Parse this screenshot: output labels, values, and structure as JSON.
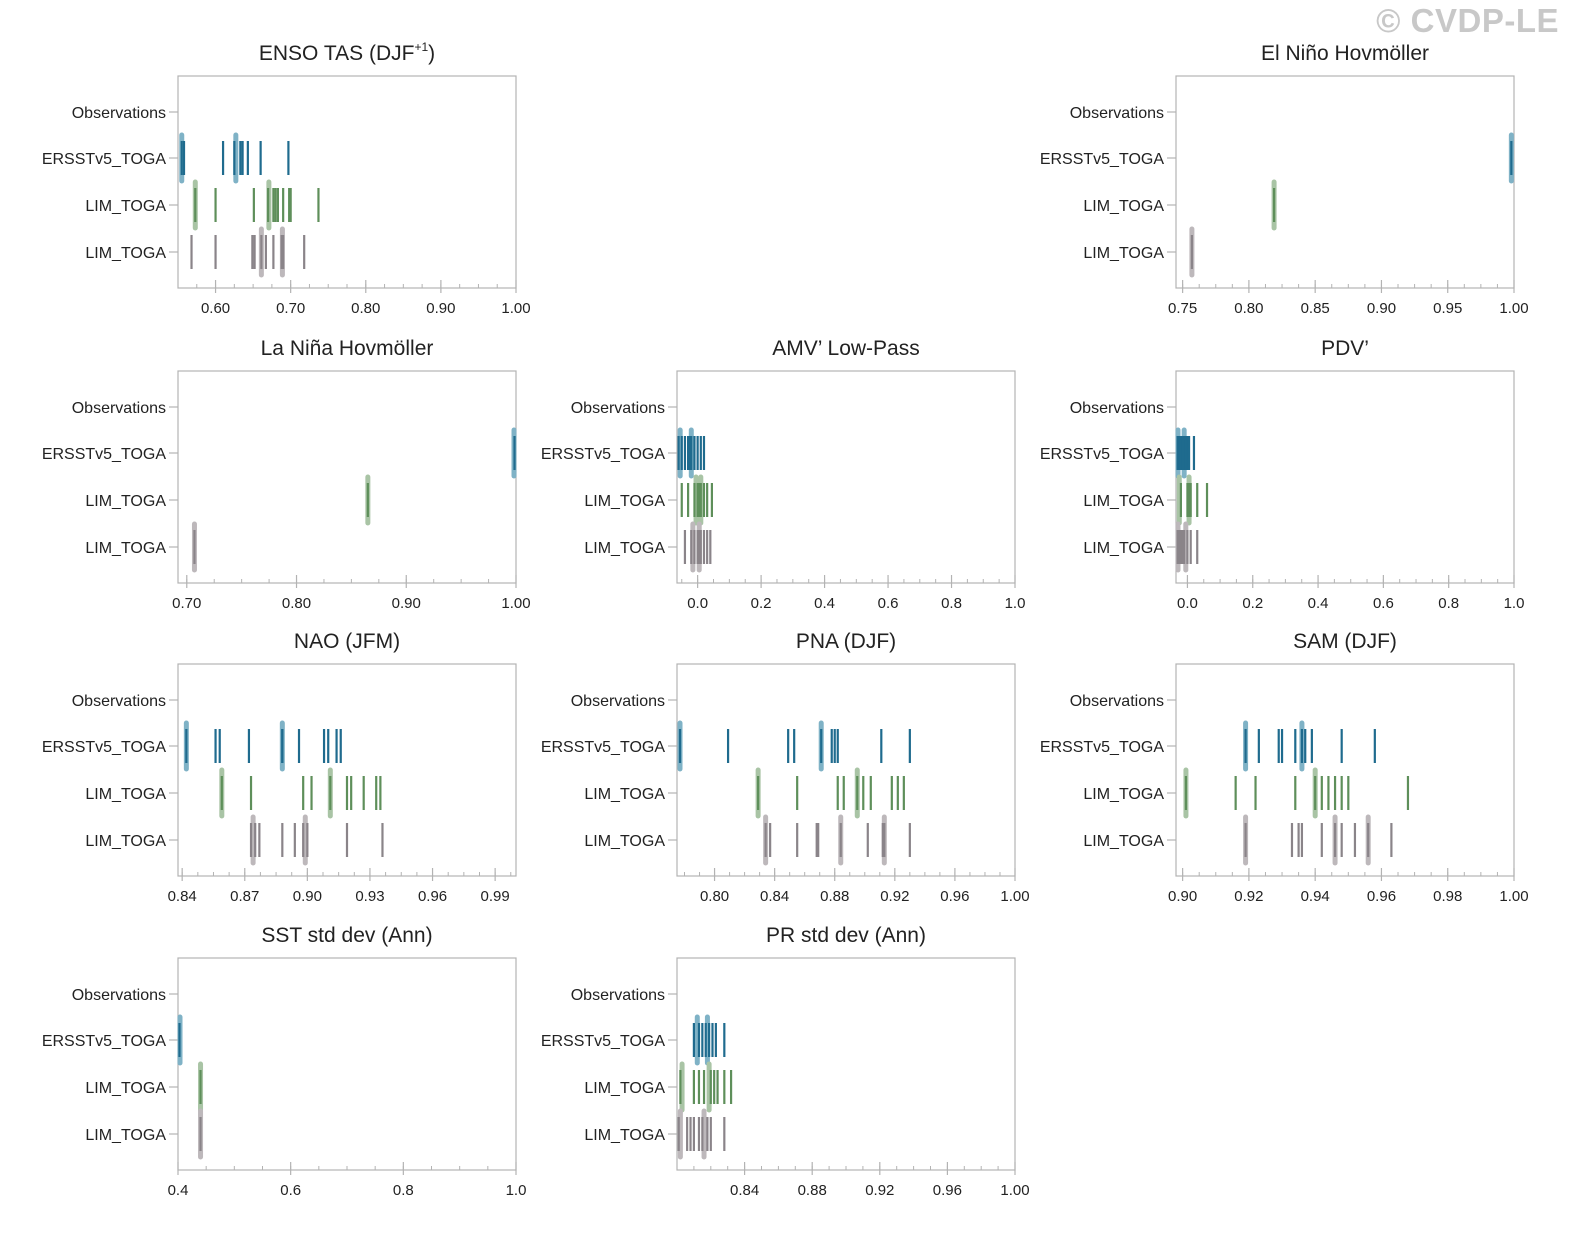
{
  "watermark": "© CVDP-LE",
  "row_labels": [
    "Observations",
    "ERSSTv5_TOGA",
    "LIM_TOGA",
    "LIM_TOGA"
  ],
  "colors": {
    "ersst": "#1f6b8e",
    "lim1": "#5e8f5a",
    "lim2": "#8a8489",
    "ersst_light": "#7fb2c6",
    "lim1_light": "#a9c4a5",
    "lim2_light": "#bdb8bb",
    "axis": "#b3b3b3"
  },
  "chart_data": [
    {
      "type": "scatter",
      "panel": "enso",
      "title": "ENSO TAS (DJF",
      "title_sup": "+1",
      "title_suffix": ")",
      "xlim": [
        0.55,
        1.0
      ],
      "xticks": [
        0.6,
        0.7,
        0.8,
        0.9,
        1.0
      ],
      "xtick_labels": [
        "0.60",
        "0.70",
        "0.80",
        "0.90",
        "1.00"
      ],
      "series": [
        {
          "values": [
            0.555,
            0.558,
            0.61,
            0.625,
            0.633,
            0.636,
            0.643,
            0.66,
            0.697
          ],
          "highlight": [
            0.555,
            0.627
          ]
        },
        {
          "values": [
            0.573,
            0.6,
            0.651,
            0.67,
            0.677,
            0.68,
            0.683,
            0.69,
            0.698,
            0.7,
            0.737
          ],
          "highlight": [
            0.573,
            0.671
          ]
        },
        {
          "values": [
            0.568,
            0.6,
            0.649,
            0.652,
            0.661,
            0.667,
            0.677,
            0.688,
            0.69,
            0.718
          ],
          "highlight": [
            0.661,
            0.689
          ]
        }
      ]
    },
    {
      "type": "scatter",
      "panel": "elnino",
      "title": "El Niño Hovmöller",
      "xlim": [
        0.745,
        1.0
      ],
      "xticks": [
        0.75,
        0.8,
        0.85,
        0.9,
        0.95,
        1.0
      ],
      "xtick_labels": [
        "0.75",
        "0.80",
        "0.85",
        "0.90",
        "0.95",
        "1.00"
      ],
      "series": [
        {
          "values": [
            0.998
          ],
          "highlight": [
            0.998
          ]
        },
        {
          "values": [
            0.819
          ],
          "highlight": [
            0.819
          ]
        },
        {
          "values": [
            0.757
          ],
          "highlight": [
            0.757
          ]
        }
      ]
    },
    {
      "type": "scatter",
      "panel": "lanina",
      "title": "La Niña Hovmöller",
      "xlim": [
        0.692,
        1.0
      ],
      "xticks": [
        0.7,
        0.8,
        0.9,
        1.0
      ],
      "xtick_labels": [
        "0.70",
        "0.80",
        "0.90",
        "1.00"
      ],
      "series": [
        {
          "values": [
            0.999
          ],
          "highlight": [
            0.999
          ]
        },
        {
          "values": [
            0.865
          ],
          "highlight": [
            0.865
          ]
        },
        {
          "values": [
            0.707
          ],
          "highlight": [
            0.707
          ]
        }
      ]
    },
    {
      "type": "scatter",
      "panel": "amv",
      "title": "AMV’ Low-Pass",
      "xlim": [
        -0.065,
        1.0
      ],
      "xticks": [
        0.0,
        0.2,
        0.4,
        0.6,
        0.8,
        1.0
      ],
      "xtick_labels": [
        "0.0",
        "0.2",
        "0.4",
        "0.6",
        "0.8",
        "1.0"
      ],
      "series": [
        {
          "values": [
            -0.06,
            -0.05,
            -0.04,
            -0.03,
            -0.025,
            -0.02,
            -0.01,
            0.0,
            0.01,
            0.02
          ],
          "highlight": [
            -0.055,
            -0.02
          ]
        },
        {
          "values": [
            -0.05,
            -0.03,
            -0.01,
            0.0,
            0.005,
            0.01,
            0.02,
            0.03,
            0.045
          ],
          "highlight": [
            -0.005,
            0.01
          ]
        },
        {
          "values": [
            -0.04,
            -0.02,
            -0.01,
            0.0,
            0.005,
            0.01,
            0.02,
            0.03,
            0.04
          ],
          "highlight": [
            -0.015,
            0.005
          ]
        }
      ]
    },
    {
      "type": "scatter",
      "panel": "pdv",
      "title": "PDV’",
      "xlim": [
        -0.035,
        1.0
      ],
      "xticks": [
        0.0,
        0.2,
        0.4,
        0.6,
        0.8,
        1.0
      ],
      "xtick_labels": [
        "0.0",
        "0.2",
        "0.4",
        "0.6",
        "0.8",
        "1.0"
      ],
      "series": [
        {
          "values": [
            -0.03,
            -0.025,
            -0.02,
            -0.015,
            -0.01,
            -0.005,
            0.0,
            0.005,
            0.02
          ],
          "highlight": [
            -0.03,
            -0.01
          ]
        },
        {
          "values": [
            -0.02,
            0.0,
            0.005,
            0.01,
            0.03,
            0.06
          ],
          "highlight": [
            -0.025,
            0.005
          ]
        },
        {
          "values": [
            -0.03,
            -0.025,
            -0.02,
            -0.015,
            -0.01,
            0.0,
            0.01,
            0.03
          ],
          "highlight": [
            -0.03,
            -0.005
          ]
        }
      ]
    },
    {
      "type": "scatter",
      "panel": "nao",
      "title": "NAO (JFM)",
      "xlim": [
        0.838,
        1.0
      ],
      "xticks": [
        0.84,
        0.87,
        0.9,
        0.93,
        0.96,
        0.99
      ],
      "xtick_labels": [
        "0.84",
        "0.87",
        "0.90",
        "0.93",
        "0.96",
        "0.99"
      ],
      "series": [
        {
          "values": [
            0.842,
            0.856,
            0.858,
            0.872,
            0.888,
            0.888,
            0.896,
            0.908,
            0.91,
            0.914,
            0.916
          ],
          "highlight": [
            0.842,
            0.888
          ]
        },
        {
          "values": [
            0.859,
            0.873,
            0.898,
            0.902,
            0.911,
            0.919,
            0.921,
            0.927,
            0.933,
            0.935
          ],
          "highlight": [
            0.859,
            0.911
          ]
        },
        {
          "values": [
            0.873,
            0.875,
            0.877,
            0.888,
            0.894,
            0.898,
            0.9,
            0.919,
            0.936
          ],
          "highlight": [
            0.874,
            0.899
          ]
        }
      ]
    },
    {
      "type": "scatter",
      "panel": "pna",
      "title": "PNA (DJF)",
      "xlim": [
        0.775,
        1.0
      ],
      "xticks": [
        0.8,
        0.84,
        0.88,
        0.92,
        0.96,
        1.0
      ],
      "xtick_labels": [
        "0.80",
        "0.84",
        "0.88",
        "0.92",
        "0.96",
        "1.00"
      ],
      "series": [
        {
          "values": [
            0.777,
            0.809,
            0.849,
            0.853,
            0.871,
            0.878,
            0.88,
            0.882,
            0.911,
            0.93
          ],
          "highlight": [
            0.777,
            0.871
          ]
        },
        {
          "values": [
            0.829,
            0.855,
            0.882,
            0.886,
            0.895,
            0.899,
            0.904,
            0.918,
            0.922,
            0.926
          ],
          "highlight": [
            0.829,
            0.895
          ]
        },
        {
          "values": [
            0.834,
            0.837,
            0.855,
            0.868,
            0.869,
            0.884,
            0.902,
            0.912,
            0.913,
            0.93
          ],
          "highlight": [
            0.834,
            0.884,
            0.913
          ]
        }
      ]
    },
    {
      "type": "scatter",
      "panel": "sam",
      "title": "SAM (DJF)",
      "xlim": [
        0.898,
        1.0
      ],
      "xticks": [
        0.9,
        0.92,
        0.94,
        0.96,
        0.98,
        1.0
      ],
      "xtick_labels": [
        "0.90",
        "0.92",
        "0.94",
        "0.96",
        "0.98",
        "1.00"
      ],
      "series": [
        {
          "values": [
            0.919,
            0.923,
            0.929,
            0.93,
            0.934,
            0.936,
            0.937,
            0.939,
            0.948,
            0.958
          ],
          "highlight": [
            0.919,
            0.936
          ]
        },
        {
          "values": [
            0.901,
            0.916,
            0.922,
            0.934,
            0.94,
            0.942,
            0.944,
            0.946,
            0.948,
            0.95,
            0.968
          ],
          "highlight": [
            0.901,
            0.94
          ]
        },
        {
          "values": [
            0.919,
            0.933,
            0.935,
            0.936,
            0.942,
            0.946,
            0.948,
            0.952,
            0.956,
            0.963
          ],
          "highlight": [
            0.919,
            0.946,
            0.956
          ]
        }
      ]
    },
    {
      "type": "scatter",
      "panel": "sst",
      "title": "SST std dev (Ann)",
      "xlim": [
        0.4,
        1.0
      ],
      "xticks": [
        0.4,
        0.6,
        0.8,
        1.0
      ],
      "xtick_labels": [
        "0.4",
        "0.6",
        "0.8",
        "1.0"
      ],
      "series": [
        {
          "values": [
            0.402
          ],
          "highlight": [
            0.402
          ]
        },
        {
          "values": [
            0.44
          ],
          "highlight": [
            0.44
          ]
        },
        {
          "values": [
            0.44
          ],
          "highlight": [
            0.44
          ]
        }
      ]
    },
    {
      "type": "scatter",
      "panel": "pr",
      "title": "PR std dev (Ann)",
      "xlim": [
        0.8,
        1.0
      ],
      "xticks": [
        0.84,
        0.88,
        0.92,
        0.96,
        1.0
      ],
      "xtick_labels": [
        "0.84",
        "0.88",
        "0.92",
        "0.96",
        "1.00"
      ],
      "series": [
        {
          "values": [
            0.81,
            0.813,
            0.815,
            0.817,
            0.819,
            0.821,
            0.823,
            0.828
          ],
          "highlight": [
            0.812,
            0.818
          ]
        },
        {
          "values": [
            0.802,
            0.81,
            0.813,
            0.816,
            0.82,
            0.822,
            0.824,
            0.828,
            0.832
          ],
          "highlight": [
            0.803,
            0.819
          ]
        },
        {
          "values": [
            0.801,
            0.806,
            0.808,
            0.81,
            0.813,
            0.815,
            0.818,
            0.82,
            0.828
          ],
          "highlight": [
            0.802,
            0.816
          ]
        }
      ]
    }
  ]
}
